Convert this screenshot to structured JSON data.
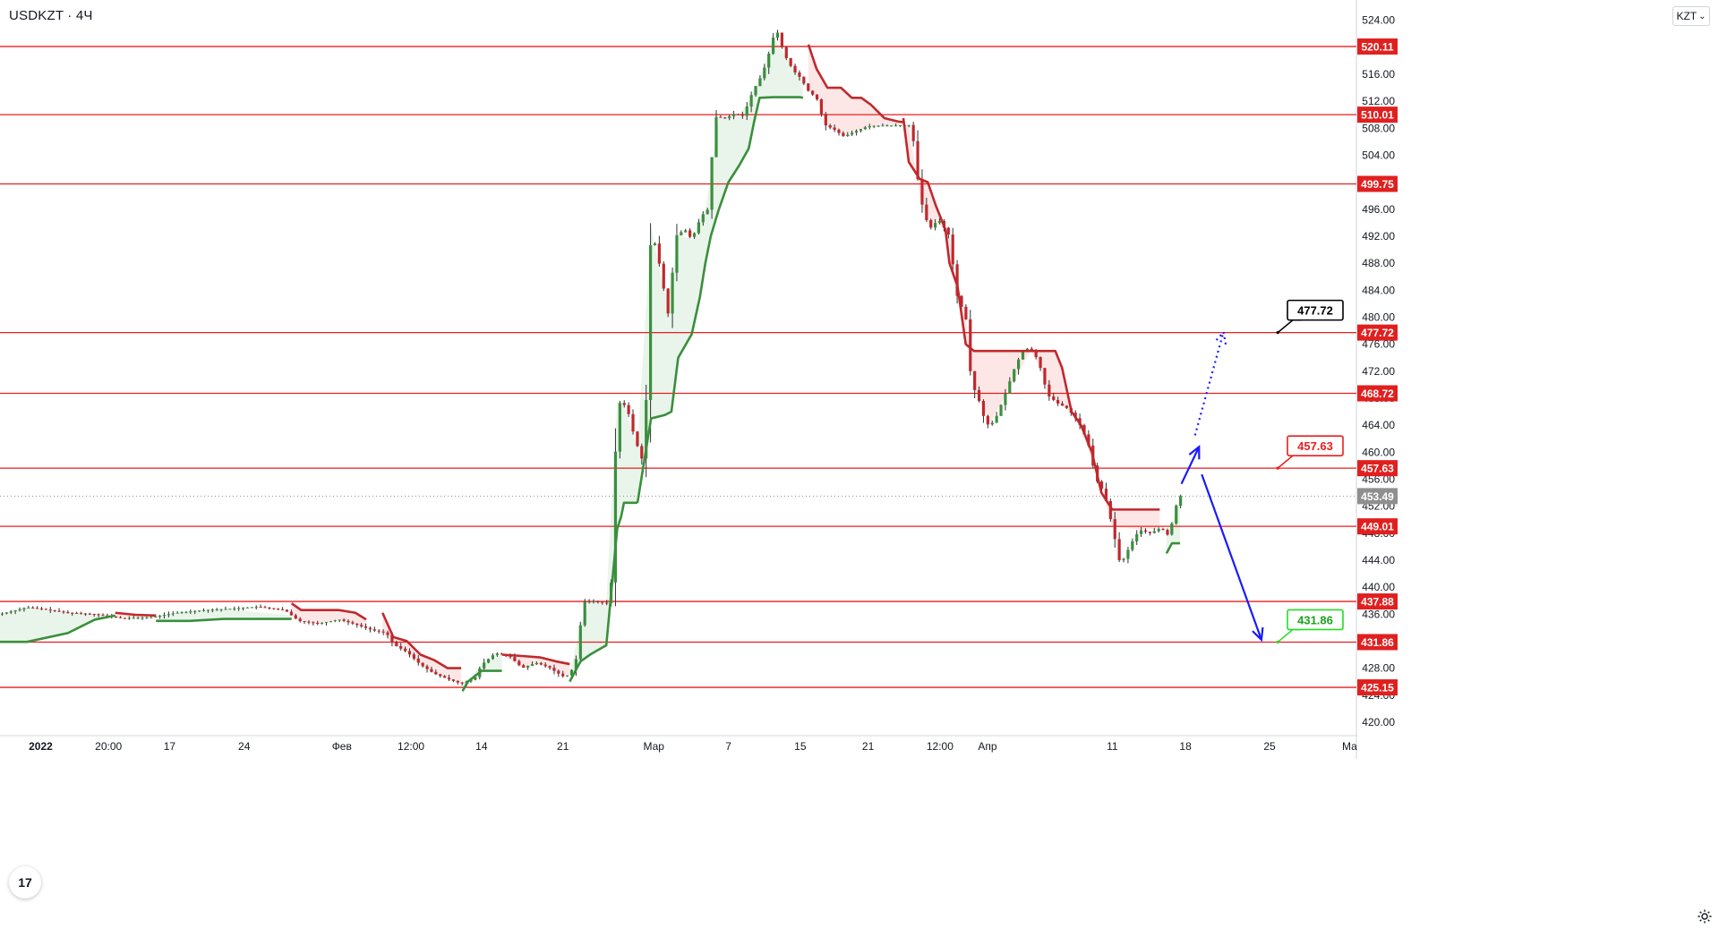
{
  "header": {
    "symbol": "USDKZT · 4Ч",
    "currency": "KZT",
    "currency_caret": "⌄"
  },
  "logo_text": "17",
  "icons": {
    "settings": "gear-icon",
    "logo": "tradingview-logo-icon",
    "currency_caret": "chevron-down-icon"
  },
  "colors": {
    "level_line": "#e91e1e",
    "up": "#388e3c",
    "down": "#c62828",
    "supertrend_up": "#3a8f3c",
    "supertrend_down": "#c0282d",
    "fill_up": "rgba(76,175,80,0.12)",
    "fill_down": "rgba(239,83,80,0.14)",
    "arrow": "#1a1aff",
    "callout_black": "#000000",
    "callout_red": "#e91e1e",
    "callout_green": "#22dd22"
  },
  "chart_data": {
    "type": "candlestick",
    "symbol": "USDKZT",
    "timeframe": "4Ч",
    "currency": "KZT",
    "ylim": [
      418,
      527
    ],
    "y_ticks": [
      420.0,
      424.0,
      428.0,
      432.0,
      436.0,
      440.0,
      444.0,
      448.0,
      452.0,
      456.0,
      460.0,
      464.0,
      468.0,
      472.0,
      476.0,
      480.0,
      484.0,
      488.0,
      492.0,
      496.0,
      500.0,
      504.0,
      508.0,
      512.0,
      516.0,
      520.0,
      524.0
    ],
    "y_tick_labels": [
      "420.00",
      "424.00",
      "428.00",
      "432.00",
      "436.00",
      "440.00",
      "444.00",
      "448.00",
      "452.00",
      "456.00",
      "460.00",
      "464.00",
      "468.00",
      "472.00",
      "476.00",
      "480.00",
      "484.00",
      "488.00",
      "492.00",
      "496.00",
      "500.00",
      "504.00",
      "508.00",
      "512.00",
      "516.00",
      "520.00",
      "524.00"
    ],
    "x_tick_labels": [
      {
        "label": "2022",
        "bold": true,
        "t": 0.03
      },
      {
        "label": "20:00",
        "t": 0.08
      },
      {
        "label": "17",
        "t": 0.125
      },
      {
        "label": "24",
        "t": 0.18
      },
      {
        "label": "Фев",
        "t": 0.252
      },
      {
        "label": "12:00",
        "t": 0.303
      },
      {
        "label": "14",
        "t": 0.355
      },
      {
        "label": "21",
        "t": 0.415
      },
      {
        "label": "Мар",
        "t": 0.482
      },
      {
        "label": "7",
        "t": 0.537
      },
      {
        "label": "15",
        "t": 0.59
      },
      {
        "label": "21",
        "t": 0.64
      },
      {
        "label": "12:00",
        "t": 0.693
      },
      {
        "label": "Апр",
        "t": 0.728
      },
      {
        "label": "11",
        "t": 0.82
      },
      {
        "label": "18",
        "t": 0.874
      },
      {
        "label": "25",
        "t": 0.936
      },
      {
        "label": "Ма",
        "t": 0.995
      }
    ],
    "levels": [
      520.11,
      510.01,
      499.75,
      477.72,
      468.72,
      457.63,
      449.01,
      437.88,
      431.86,
      425.15
    ],
    "level_labels": [
      "520.11",
      "510.01",
      "499.75",
      "477.72",
      "468.72",
      "457.63",
      "449.01",
      "437.88",
      "431.86",
      "425.15"
    ],
    "current_price": 453.49,
    "current_price_label": "453.49",
    "close_path": [
      [
        0,
        436
      ],
      [
        0.01,
        436.5
      ],
      [
        0.02,
        437
      ],
      [
        0.03,
        436.8
      ],
      [
        0.05,
        436.2
      ],
      [
        0.07,
        436
      ],
      [
        0.09,
        435.4
      ],
      [
        0.11,
        435.5
      ],
      [
        0.13,
        436.2
      ],
      [
        0.15,
        436.6
      ],
      [
        0.17,
        436.8
      ],
      [
        0.19,
        437.1
      ],
      [
        0.21,
        436.6
      ],
      [
        0.22,
        435
      ],
      [
        0.235,
        434.6
      ],
      [
        0.25,
        435.2
      ],
      [
        0.265,
        434.3
      ],
      [
        0.275,
        433.6
      ],
      [
        0.285,
        433.2
      ],
      [
        0.29,
        431.5
      ],
      [
        0.3,
        430.4
      ],
      [
        0.31,
        428.5
      ],
      [
        0.32,
        427.2
      ],
      [
        0.33,
        426.4
      ],
      [
        0.34,
        425.7
      ],
      [
        0.35,
        426.5
      ],
      [
        0.355,
        428.5
      ],
      [
        0.365,
        430.2
      ],
      [
        0.375,
        429.9
      ],
      [
        0.385,
        428
      ],
      [
        0.395,
        428.8
      ],
      [
        0.405,
        428.1
      ],
      [
        0.41,
        427.4
      ],
      [
        0.415,
        426.8
      ],
      [
        0.42,
        427
      ],
      [
        0.425,
        429.5
      ],
      [
        0.43,
        437.8
      ],
      [
        0.438,
        437.9
      ],
      [
        0.45,
        437.5
      ],
      [
        0.455,
        467.5
      ],
      [
        0.462,
        466.8
      ],
      [
        0.468,
        462
      ],
      [
        0.475,
        458
      ],
      [
        0.48,
        493.5
      ],
      [
        0.486,
        488
      ],
      [
        0.493,
        480
      ],
      [
        0.498,
        492
      ],
      [
        0.505,
        493
      ],
      [
        0.51,
        491.5
      ],
      [
        0.517,
        495
      ],
      [
        0.522,
        496
      ],
      [
        0.527,
        509.7
      ],
      [
        0.535,
        509.5
      ],
      [
        0.542,
        510.2
      ],
      [
        0.548,
        509.8
      ],
      [
        0.555,
        513.5
      ],
      [
        0.562,
        516
      ],
      [
        0.568,
        519.8
      ],
      [
        0.572,
        523
      ],
      [
        0.578,
        519
      ],
      [
        0.585,
        516.5
      ],
      [
        0.59,
        515.5
      ],
      [
        0.596,
        513.5
      ],
      [
        0.602,
        512.5
      ],
      [
        0.608,
        508.5
      ],
      [
        0.615,
        507.8
      ],
      [
        0.622,
        506.8
      ],
      [
        0.63,
        507.5
      ],
      [
        0.64,
        508.3
      ],
      [
        0.65,
        508.4
      ],
      [
        0.66,
        508.4
      ],
      [
        0.672,
        508.5
      ],
      [
        0.678,
        498
      ],
      [
        0.685,
        493
      ],
      [
        0.692,
        494.5
      ],
      [
        0.7,
        492
      ],
      [
        0.705,
        483.5
      ],
      [
        0.712,
        480
      ],
      [
        0.716,
        470.5
      ],
      [
        0.722,
        467.5
      ],
      [
        0.727,
        464
      ],
      [
        0.733,
        464.5
      ],
      [
        0.74,
        468
      ],
      [
        0.748,
        472.5
      ],
      [
        0.755,
        475.5
      ],
      [
        0.762,
        475
      ],
      [
        0.768,
        472
      ],
      [
        0.772,
        468.5
      ],
      [
        0.78,
        467.2
      ],
      [
        0.787,
        466.5
      ],
      [
        0.795,
        464.5
      ],
      [
        0.802,
        461.5
      ],
      [
        0.808,
        456
      ],
      [
        0.814,
        454
      ],
      [
        0.82,
        449
      ],
      [
        0.826,
        443.2
      ],
      [
        0.834,
        446.5
      ],
      [
        0.84,
        448.5
      ],
      [
        0.848,
        448
      ],
      [
        0.856,
        448.8
      ],
      [
        0.862,
        447.5
      ],
      [
        0.866,
        451.5
      ],
      [
        0.87,
        453.49
      ]
    ],
    "supertrend": [
      {
        "direction": "up",
        "points": [
          [
            0.0,
            431.9
          ],
          [
            0.02,
            431.9
          ],
          [
            0.05,
            433.2
          ],
          [
            0.07,
            435.2
          ],
          [
            0.085,
            435.8
          ]
        ]
      },
      {
        "direction": "down",
        "points": [
          [
            0.085,
            436.2
          ],
          [
            0.1,
            435.9
          ],
          [
            0.115,
            435.8
          ]
        ]
      },
      {
        "direction": "up",
        "points": [
          [
            0.115,
            435.0
          ],
          [
            0.14,
            435.0
          ],
          [
            0.165,
            435.3
          ],
          [
            0.215,
            435.3
          ]
        ]
      },
      {
        "direction": "down",
        "points": [
          [
            0.215,
            437.6
          ],
          [
            0.222,
            436.6
          ],
          [
            0.235,
            436.6
          ],
          [
            0.25,
            436.6
          ],
          [
            0.262,
            436.2
          ],
          [
            0.27,
            435.2
          ]
        ]
      },
      {
        "direction": "down",
        "points": [
          [
            0.282,
            436.2
          ],
          [
            0.29,
            432.6
          ],
          [
            0.3,
            432.0
          ],
          [
            0.31,
            430.0
          ],
          [
            0.32,
            429.2
          ],
          [
            0.33,
            428.0
          ],
          [
            0.34,
            428.0
          ]
        ]
      },
      {
        "direction": "up",
        "points": [
          [
            0.341,
            424.6
          ],
          [
            0.345,
            426.0
          ],
          [
            0.355,
            427.6
          ],
          [
            0.37,
            427.6
          ]
        ]
      },
      {
        "direction": "down",
        "points": [
          [
            0.37,
            430.0
          ],
          [
            0.385,
            429.8
          ],
          [
            0.398,
            429.6
          ],
          [
            0.41,
            429.0
          ],
          [
            0.42,
            428.6
          ]
        ]
      },
      {
        "direction": "up",
        "points": [
          [
            0.42,
            426.0
          ],
          [
            0.428,
            429.0
          ],
          [
            0.435,
            430.0
          ],
          [
            0.447,
            431.4
          ],
          [
            0.455,
            448.6
          ],
          [
            0.458,
            450.5
          ],
          [
            0.46,
            452.5
          ],
          [
            0.47,
            452.5
          ]
        ]
      },
      {
        "direction": "up",
        "points": [
          [
            0.47,
            452.5
          ],
          [
            0.48,
            465.0
          ],
          [
            0.49,
            465.5
          ],
          [
            0.495,
            466.0
          ],
          [
            0.5,
            474.0
          ],
          [
            0.51,
            477.5
          ],
          [
            0.516,
            483.0
          ],
          [
            0.52,
            488.0
          ],
          [
            0.524,
            492.0
          ],
          [
            0.53,
            496.0
          ],
          [
            0.537,
            500.0
          ],
          [
            0.545,
            502.5
          ],
          [
            0.552,
            505.0
          ],
          [
            0.556,
            509.0
          ],
          [
            0.56,
            512.5
          ],
          [
            0.57,
            512.6
          ],
          [
            0.59,
            512.6
          ],
          [
            0.592,
            512.5
          ]
        ]
      },
      {
        "direction": "down",
        "points": [
          [
            0.596,
            520.4
          ],
          [
            0.602,
            516.8
          ],
          [
            0.61,
            514.0
          ],
          [
            0.62,
            514.0
          ],
          [
            0.628,
            512.5
          ],
          [
            0.635,
            512.5
          ],
          [
            0.642,
            511.5
          ],
          [
            0.652,
            509.5
          ],
          [
            0.662,
            509.0
          ],
          [
            0.666,
            508.9
          ]
        ]
      },
      {
        "direction": "down",
        "points": [
          [
            0.666,
            509.5
          ],
          [
            0.67,
            503.0
          ],
          [
            0.678,
            500.5
          ],
          [
            0.684,
            500.0
          ],
          [
            0.69,
            496.5
          ],
          [
            0.697,
            493.0
          ],
          [
            0.7,
            488.0
          ],
          [
            0.706,
            484.5
          ],
          [
            0.712,
            476.0
          ],
          [
            0.718,
            475.0
          ],
          [
            0.73,
            475.0
          ],
          [
            0.74,
            475.0
          ],
          [
            0.76,
            475.0
          ],
          [
            0.778,
            475.0
          ],
          [
            0.783,
            472.5
          ],
          [
            0.79,
            466.0
          ],
          [
            0.797,
            464.0
          ],
          [
            0.805,
            460.0
          ],
          [
            0.812,
            454.0
          ],
          [
            0.82,
            451.5
          ],
          [
            0.84,
            451.5
          ],
          [
            0.855,
            451.5
          ]
        ]
      },
      {
        "direction": "up",
        "points": [
          [
            0.86,
            445.0
          ],
          [
            0.864,
            446.5
          ],
          [
            0.87,
            446.5
          ]
        ]
      }
    ],
    "callouts": [
      {
        "label": "477.72",
        "value": 477.72,
        "style": "black"
      },
      {
        "label": "457.63",
        "value": 457.63,
        "style": "red"
      },
      {
        "label": "431.86",
        "value": 431.86,
        "style": "green"
      }
    ],
    "projections": [
      {
        "kind": "solid-arrow",
        "points": [
          [
            0.871,
            455.3
          ],
          [
            0.884,
            460.8
          ]
        ]
      },
      {
        "kind": "dotted-arrow",
        "points": [
          [
            0.881,
            462.5
          ],
          [
            0.902,
            477.8
          ]
        ]
      },
      {
        "kind": "solid-arrow",
        "points": [
          [
            0.886,
            456.7
          ],
          [
            0.93,
            432.2
          ]
        ]
      }
    ]
  }
}
